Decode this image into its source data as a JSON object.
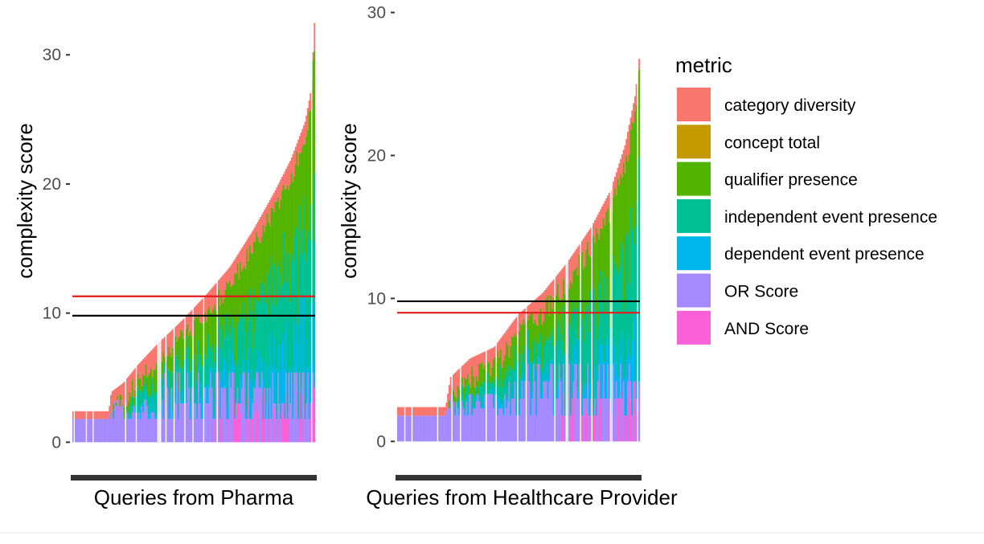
{
  "legend": {
    "title": "metric",
    "items": [
      {
        "label": "category diversity",
        "color": "#F8766D"
      },
      {
        "label": "concept total",
        "color": "#C49A00"
      },
      {
        "label": "qualifier presence",
        "color": "#53B400"
      },
      {
        "label": "independent event presence",
        "color": "#00C094"
      },
      {
        "label": "dependent event presence",
        "color": "#00B6EB"
      },
      {
        "label": "OR Score",
        "color": "#A58AFF"
      },
      {
        "label": "AND Score",
        "color": "#FB61D7"
      }
    ]
  },
  "chart_data": [
    {
      "type": "bar",
      "stacked": true,
      "xlabel": "Queries from Pharma",
      "ylabel": "complexity score",
      "ylim": [
        -0.6,
        33.5
      ],
      "yticks": [
        0,
        10,
        20,
        30
      ],
      "hlines": [
        {
          "y": 11.3,
          "color": "#E41A1C"
        },
        {
          "y": 9.8,
          "color": "#000000"
        }
      ],
      "totals_profile": [
        [
          0,
          2.4
        ],
        [
          0.15,
          2.4
        ],
        [
          0.16,
          3.9
        ],
        [
          0.21,
          4.6
        ],
        [
          0.27,
          6.0
        ],
        [
          0.35,
          7.6
        ],
        [
          0.45,
          9.4
        ],
        [
          0.55,
          11.4
        ],
        [
          0.65,
          13.6
        ],
        [
          0.75,
          16.6
        ],
        [
          0.83,
          19.3
        ],
        [
          0.9,
          21.9
        ],
        [
          0.96,
          24.9
        ],
        [
          0.985,
          27.5
        ],
        [
          1.0,
          33.6
        ]
      ]
    },
    {
      "type": "bar",
      "stacked": true,
      "xlabel": "Queries from Healthcare Provider",
      "ylabel": "complexity score",
      "ylim": [
        -0.6,
        30.2
      ],
      "yticks": [
        0,
        10,
        20,
        30
      ],
      "hlines": [
        {
          "y": 9.0,
          "color": "#E41A1C"
        },
        {
          "y": 9.8,
          "color": "#000000"
        }
      ],
      "totals_profile": [
        [
          0,
          2.4
        ],
        [
          0.2,
          2.4
        ],
        [
          0.22,
          4.5
        ],
        [
          0.3,
          5.8
        ],
        [
          0.4,
          6.6
        ],
        [
          0.5,
          8.9
        ],
        [
          0.6,
          10.4
        ],
        [
          0.7,
          12.5
        ],
        [
          0.8,
          15.0
        ],
        [
          0.88,
          17.6
        ],
        [
          0.94,
          20.8
        ],
        [
          0.98,
          24.2
        ],
        [
          1.0,
          27.2
        ]
      ]
    }
  ]
}
